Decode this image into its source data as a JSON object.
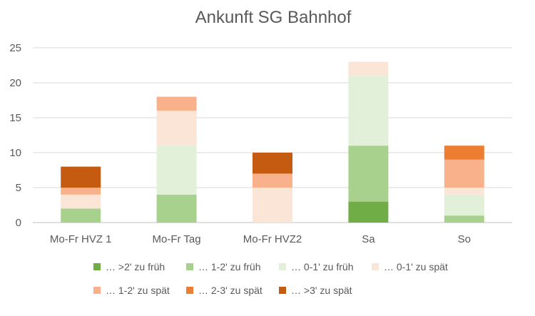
{
  "chart_data": {
    "type": "bar",
    "stacked": true,
    "title": "Ankunft SG Bahnhof",
    "xlabel": "",
    "ylabel": "",
    "ylim": [
      0,
      25
    ],
    "yticks": [
      "0",
      "5",
      "10",
      "15",
      "20",
      "25"
    ],
    "grid": true,
    "legend_position": "bottom",
    "categories": [
      "Mo-Fr HVZ 1",
      "Mo-Fr Tag",
      "Mo-Fr HVZ2",
      "Sa",
      "So"
    ],
    "series": [
      {
        "name": "… >2' zu früh",
        "color": "#70AD47",
        "values": [
          0,
          0,
          0,
          3,
          0
        ]
      },
      {
        "name": "… 1-2' zu früh",
        "color": "#A9D18E",
        "values": [
          2,
          4,
          0,
          8,
          1
        ]
      },
      {
        "name": "… 0-1' zu früh",
        "color": "#E2F0D9",
        "values": [
          0,
          7,
          0,
          10,
          3
        ]
      },
      {
        "name": "… 0-1' zu spät",
        "color": "#FBE5D6",
        "values": [
          2,
          5,
          5,
          2,
          1
        ]
      },
      {
        "name": "… 1-2' zu spät",
        "color": "#F8B18A",
        "values": [
          1,
          2,
          2,
          0,
          4
        ]
      },
      {
        "name": "… 2-3' zu spät",
        "color": "#ED7D31",
        "values": [
          0,
          0,
          0,
          0,
          2
        ]
      },
      {
        "name": "… >3' zu spät",
        "color": "#C55A11",
        "values": [
          3,
          0,
          3,
          0,
          0
        ]
      }
    ]
  }
}
